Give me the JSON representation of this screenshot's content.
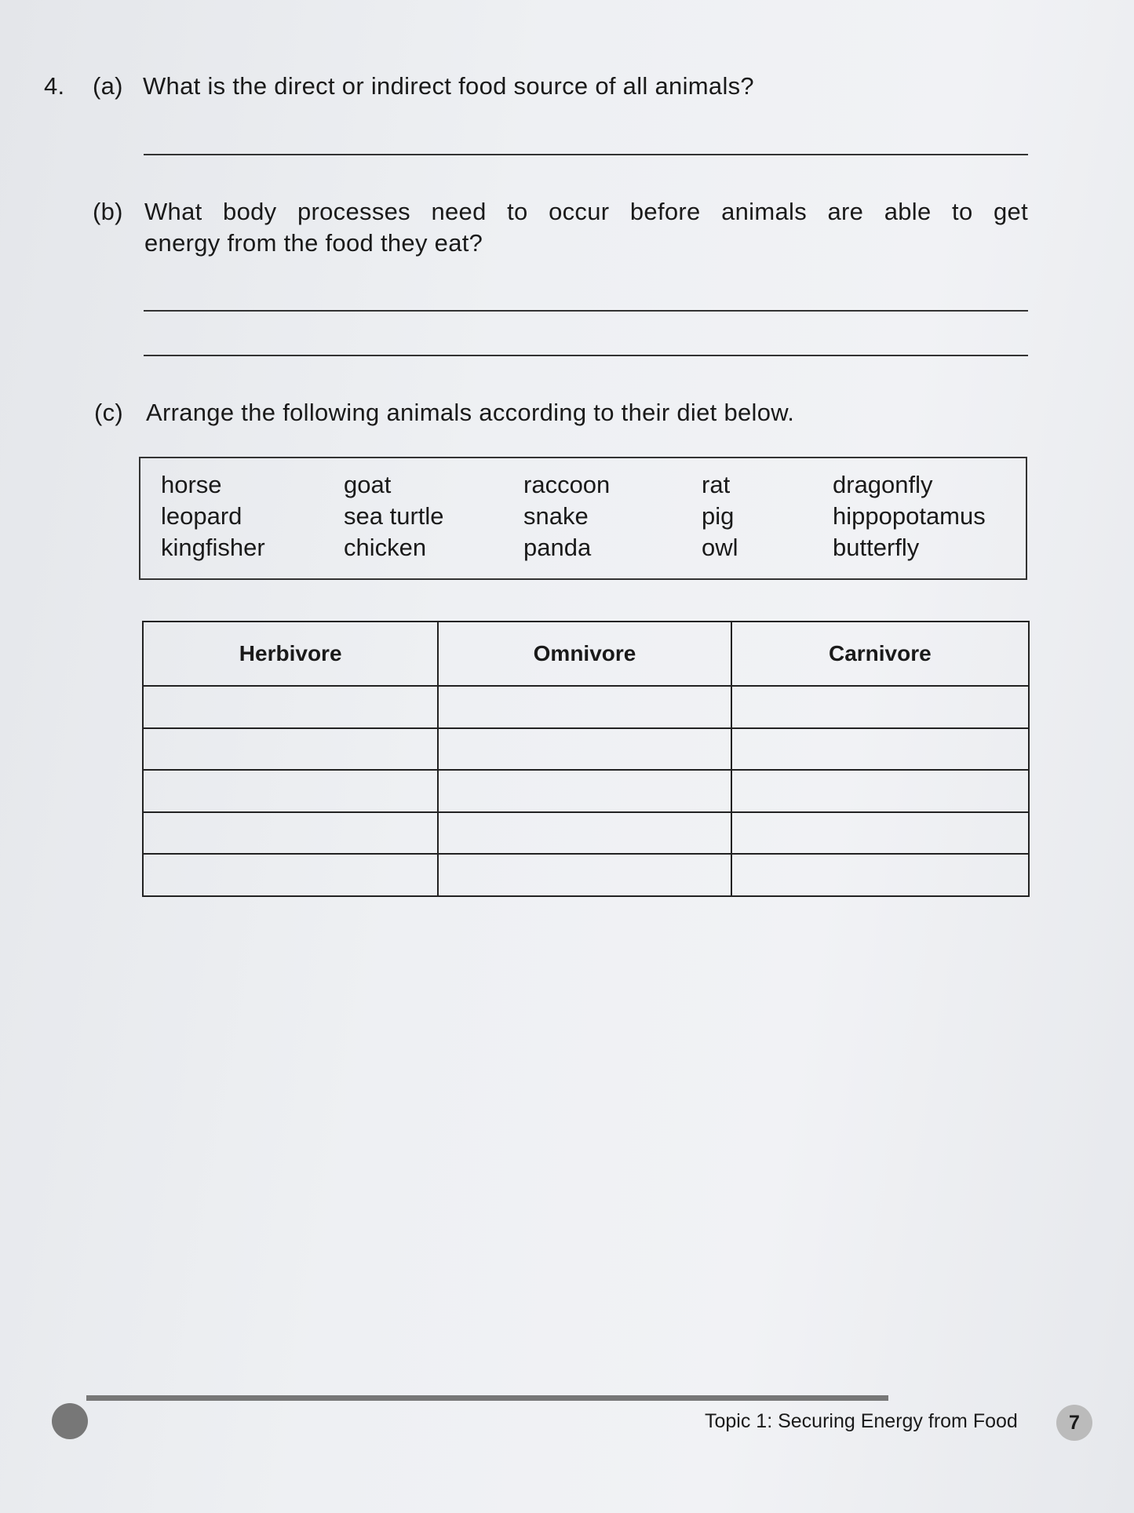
{
  "question": {
    "number": "4.",
    "a": {
      "label": "(a)",
      "text": "What is the direct or indirect food source of all animals?"
    },
    "b": {
      "label": "(b)",
      "text_line1": "What body processes need to occur before animals are able to get",
      "text_line2": "energy from the food they eat?"
    },
    "c": {
      "label": "(c)",
      "text": "Arrange the following animals according to their diet below."
    }
  },
  "word_box": {
    "columns": [
      [
        "horse",
        "leopard",
        "kingfisher"
      ],
      [
        "goat",
        "sea turtle",
        "chicken"
      ],
      [
        "raccoon",
        "snake",
        "panda"
      ],
      [
        "rat",
        "pig",
        "owl"
      ],
      [
        "dragonfly",
        "hippopotamus",
        "butterfly"
      ]
    ]
  },
  "diet_table": {
    "headers": [
      "Herbivore",
      "Omnivore",
      "Carnivore"
    ],
    "empty_rows": 5
  },
  "footer": {
    "topic": "Topic 1: Securing Energy from Food",
    "page_number": "7"
  }
}
